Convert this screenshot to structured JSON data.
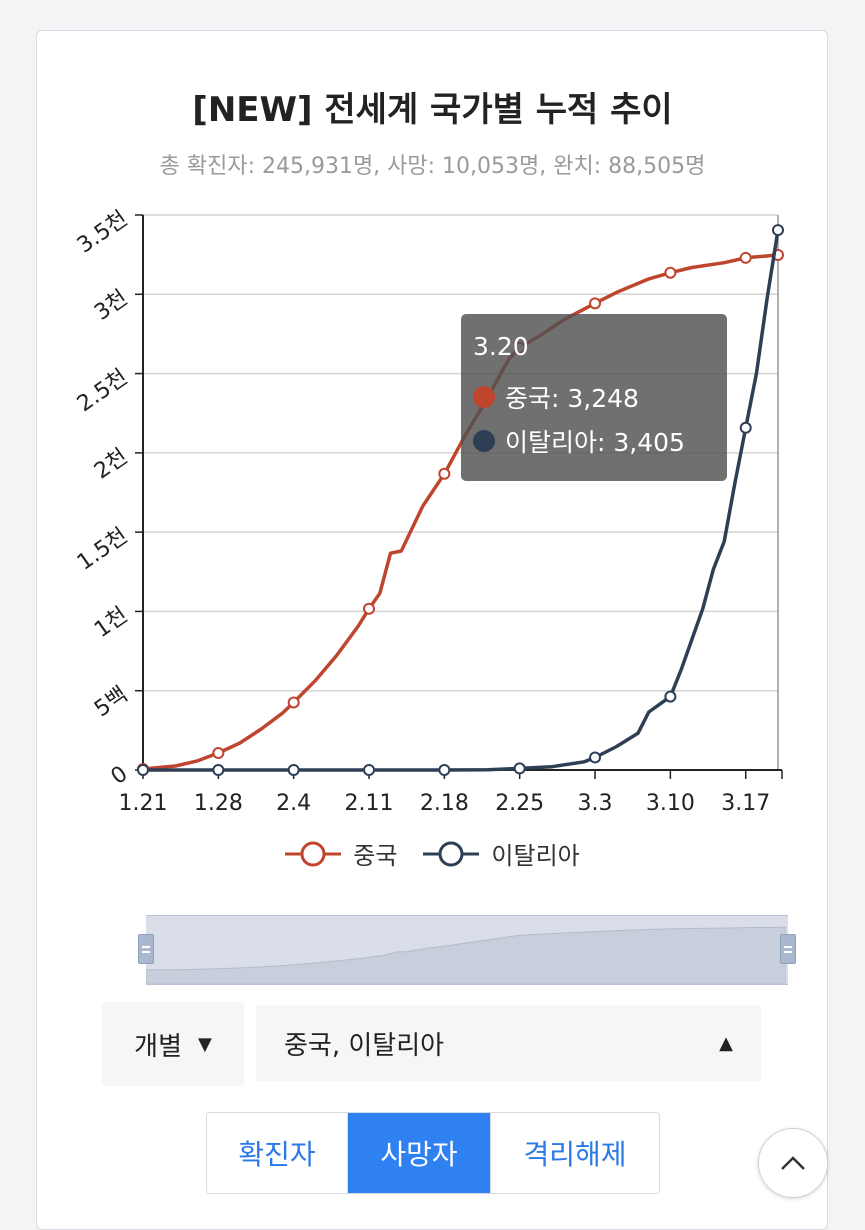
{
  "header": {
    "title": "[NEW] 전세계 국가별 누적 추이",
    "subtitle": "총 확진자: 245,931명, 사망: 10,053명, 완치: 88,505명"
  },
  "chart_data": {
    "type": "line",
    "title": "[NEW] 전세계 국가별 누적 추이",
    "x_tick_labels": [
      "1.21",
      "1.28",
      "2.4",
      "2.11",
      "2.18",
      "2.25",
      "3.3",
      "3.10",
      "3.17"
    ],
    "y_tick_labels": [
      "0",
      "5백",
      "1천",
      "1.5천",
      "2천",
      "2.5천",
      "3천",
      "3.5천"
    ],
    "ylim": [
      0,
      3500
    ],
    "grid": true,
    "legend_position": "bottom",
    "series": [
      {
        "name": "중국",
        "color": "#c0452f",
        "points": [
          {
            "date": "1.21",
            "value": 6
          },
          {
            "date": "1.24",
            "value": 25
          },
          {
            "date": "1.26",
            "value": 56
          },
          {
            "date": "1.28",
            "value": 107
          },
          {
            "date": "1.30",
            "value": 170
          },
          {
            "date": "2.1",
            "value": 259
          },
          {
            "date": "2.3",
            "value": 361
          },
          {
            "date": "2.4",
            "value": 426
          },
          {
            "date": "2.6",
            "value": 563
          },
          {
            "date": "2.8",
            "value": 723
          },
          {
            "date": "2.10",
            "value": 908
          },
          {
            "date": "2.11",
            "value": 1017
          },
          {
            "date": "2.12",
            "value": 1114
          },
          {
            "date": "2.13",
            "value": 1367
          },
          {
            "date": "2.14",
            "value": 1381
          },
          {
            "date": "2.16",
            "value": 1665
          },
          {
            "date": "2.18",
            "value": 1868
          },
          {
            "date": "2.20",
            "value": 2118
          },
          {
            "date": "2.22",
            "value": 2345
          },
          {
            "date": "2.24",
            "value": 2592
          },
          {
            "date": "2.25",
            "value": 2663
          },
          {
            "date": "2.27",
            "value": 2744
          },
          {
            "date": "2.29",
            "value": 2835
          },
          {
            "date": "3.3",
            "value": 2943
          },
          {
            "date": "3.5",
            "value": 3012
          },
          {
            "date": "3.8",
            "value": 3097
          },
          {
            "date": "3.10",
            "value": 3136
          },
          {
            "date": "3.12",
            "value": 3169
          },
          {
            "date": "3.15",
            "value": 3199
          },
          {
            "date": "3.17",
            "value": 3230
          },
          {
            "date": "3.20",
            "value": 3248
          }
        ],
        "marker_dates": [
          "1.21",
          "1.28",
          "2.4",
          "2.11",
          "2.18",
          "2.25",
          "3.3",
          "3.10",
          "3.17",
          "3.20"
        ]
      },
      {
        "name": "이탈리아",
        "color": "#2e3f55",
        "points": [
          {
            "date": "1.21",
            "value": 0
          },
          {
            "date": "1.28",
            "value": 0
          },
          {
            "date": "2.4",
            "value": 0
          },
          {
            "date": "2.11",
            "value": 0
          },
          {
            "date": "2.18",
            "value": 0
          },
          {
            "date": "2.22",
            "value": 2
          },
          {
            "date": "2.25",
            "value": 10
          },
          {
            "date": "2.28",
            "value": 21
          },
          {
            "date": "3.2",
            "value": 52
          },
          {
            "date": "3.3",
            "value": 79
          },
          {
            "date": "3.5",
            "value": 148
          },
          {
            "date": "3.7",
            "value": 233
          },
          {
            "date": "3.8",
            "value": 366
          },
          {
            "date": "3.10",
            "value": 463
          },
          {
            "date": "3.11",
            "value": 631
          },
          {
            "date": "3.13",
            "value": 1016
          },
          {
            "date": "3.14",
            "value": 1266
          },
          {
            "date": "3.15",
            "value": 1441
          },
          {
            "date": "3.16",
            "value": 1809
          },
          {
            "date": "3.17",
            "value": 2158
          },
          {
            "date": "3.18",
            "value": 2503
          },
          {
            "date": "3.19",
            "value": 2978
          },
          {
            "date": "3.20",
            "value": 3405
          }
        ],
        "marker_dates": [
          "1.21",
          "1.28",
          "2.4",
          "2.11",
          "2.18",
          "2.25",
          "3.3",
          "3.10",
          "3.17",
          "3.20"
        ]
      }
    ]
  },
  "tooltip": {
    "title": "3.20",
    "rows": [
      {
        "label": "중국: 3,248",
        "color": "#c0452f"
      },
      {
        "label": "이탈리아: 3,405",
        "color": "#2e3f55"
      }
    ]
  },
  "legend": [
    {
      "label": "중국",
      "color": "#c0452f"
    },
    {
      "label": "이탈리아",
      "color": "#2e3f55"
    }
  ],
  "controls": {
    "mode_select": "개별",
    "country_select": "중국, 이탈리아"
  },
  "tabs": [
    {
      "label": "확진자",
      "active": false
    },
    {
      "label": "사망자",
      "active": true
    },
    {
      "label": "격리해제",
      "active": false
    }
  ],
  "icons": {
    "mode_caret": "caret-down-icon",
    "country_caret": "caret-up-icon",
    "scroll_top": "chevron-up-icon"
  }
}
